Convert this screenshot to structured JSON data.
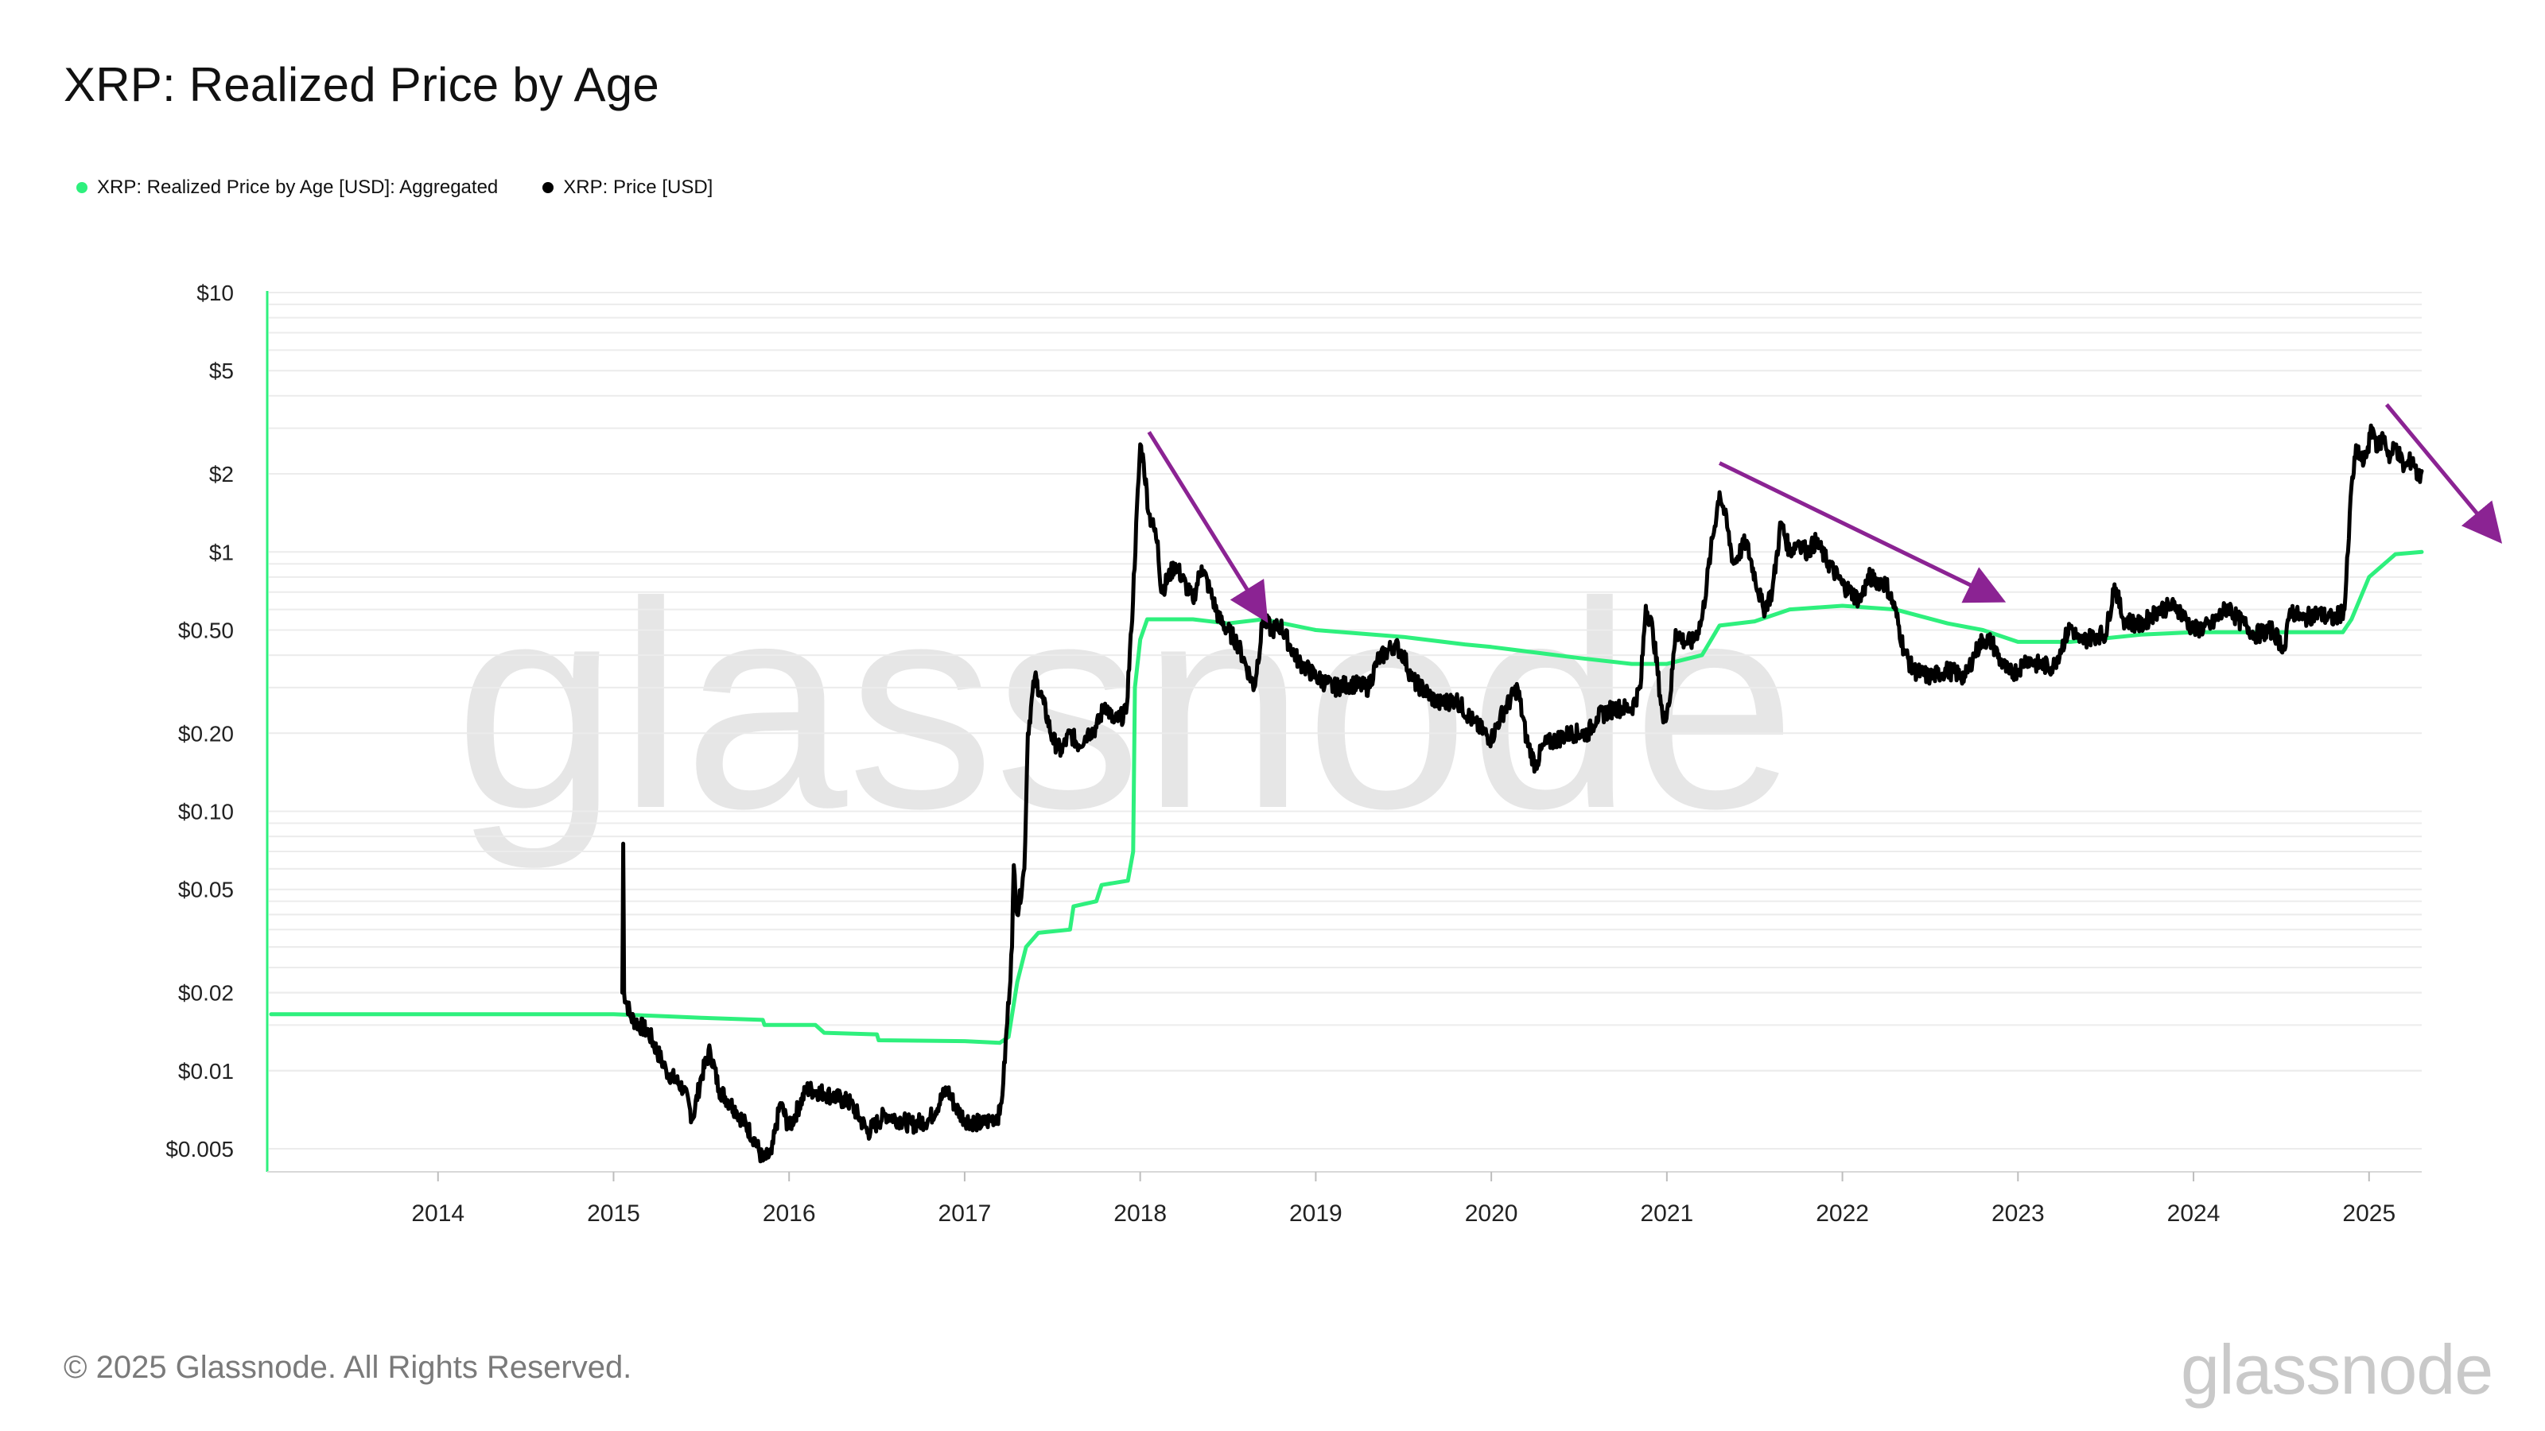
{
  "colors": {
    "realized": "#2ef07d",
    "price": "#000000",
    "arrow": "#8b2393",
    "grid": "#ececec",
    "axis_text": "#222222",
    "watermark": "#e6e6e6"
  },
  "legend": [
    {
      "label": "XRP: Realized Price by Age [USD]: Aggregated",
      "color": "#2ef07d"
    },
    {
      "label": "XRP: Price [USD]",
      "color": "#000000"
    }
  ],
  "footer": {
    "copyright": "© 2025 Glassnode. All Rights Reserved.",
    "brand": "glassnode"
  },
  "chart_data": {
    "type": "line",
    "title": "XRP: Realized Price by Age",
    "y_scale": "log",
    "ylim": [
      0.0045,
      10
    ],
    "xlim": [
      2013.0,
      2025.3
    ],
    "y_ticks": [
      {
        "value": 10,
        "label": "$10"
      },
      {
        "value": 5,
        "label": "$5"
      },
      {
        "value": 2,
        "label": "$2"
      },
      {
        "value": 1,
        "label": "$1"
      },
      {
        "value": 0.5,
        "label": "$0.50"
      },
      {
        "value": 0.2,
        "label": "$0.20"
      },
      {
        "value": 0.1,
        "label": "$0.10"
      },
      {
        "value": 0.05,
        "label": "$0.05"
      },
      {
        "value": 0.02,
        "label": "$0.02"
      },
      {
        "value": 0.01,
        "label": "$0.01"
      },
      {
        "value": 0.005,
        "label": "$0.005"
      }
    ],
    "x_ticks": [
      {
        "value": 2014,
        "label": "2014"
      },
      {
        "value": 2015,
        "label": "2015"
      },
      {
        "value": 2016,
        "label": "2016"
      },
      {
        "value": 2017,
        "label": "2017"
      },
      {
        "value": 2018,
        "label": "2018"
      },
      {
        "value": 2019,
        "label": "2019"
      },
      {
        "value": 2020,
        "label": "2020"
      },
      {
        "value": 2021,
        "label": "2021"
      },
      {
        "value": 2022,
        "label": "2022"
      },
      {
        "value": 2023,
        "label": "2023"
      },
      {
        "value": 2024,
        "label": "2024"
      },
      {
        "value": 2025,
        "label": "2025"
      }
    ],
    "watermark": "glassnode",
    "series": [
      {
        "name": "XRP: Realized Price by Age [USD]: Aggregated",
        "color": "#2ef07d",
        "points": [
          [
            2013.05,
            0.0165
          ],
          [
            2015.0,
            0.0165
          ],
          [
            2015.3,
            0.0162
          ],
          [
            2015.5,
            0.016
          ],
          [
            2015.85,
            0.0157
          ],
          [
            2015.86,
            0.015
          ],
          [
            2016.15,
            0.015
          ],
          [
            2016.2,
            0.014
          ],
          [
            2016.5,
            0.0138
          ],
          [
            2016.51,
            0.0131
          ],
          [
            2017.0,
            0.013
          ],
          [
            2017.2,
            0.0128
          ],
          [
            2017.25,
            0.0135
          ],
          [
            2017.3,
            0.022
          ],
          [
            2017.35,
            0.03
          ],
          [
            2017.42,
            0.034
          ],
          [
            2017.6,
            0.035
          ],
          [
            2017.62,
            0.043
          ],
          [
            2017.75,
            0.045
          ],
          [
            2017.78,
            0.052
          ],
          [
            2017.93,
            0.054
          ],
          [
            2017.96,
            0.07
          ],
          [
            2017.97,
            0.3
          ],
          [
            2018.0,
            0.46
          ],
          [
            2018.04,
            0.55
          ],
          [
            2018.3,
            0.55
          ],
          [
            2018.5,
            0.53
          ],
          [
            2018.7,
            0.55
          ],
          [
            2019.0,
            0.5
          ],
          [
            2019.5,
            0.47
          ],
          [
            2019.85,
            0.44
          ],
          [
            2020.0,
            0.43
          ],
          [
            2020.5,
            0.39
          ],
          [
            2020.8,
            0.37
          ],
          [
            2021.0,
            0.37
          ],
          [
            2021.2,
            0.4
          ],
          [
            2021.3,
            0.52
          ],
          [
            2021.5,
            0.54
          ],
          [
            2021.7,
            0.6
          ],
          [
            2022.0,
            0.62
          ],
          [
            2022.3,
            0.6
          ],
          [
            2022.6,
            0.53
          ],
          [
            2022.8,
            0.5
          ],
          [
            2023.0,
            0.45
          ],
          [
            2023.3,
            0.45
          ],
          [
            2023.7,
            0.48
          ],
          [
            2024.0,
            0.49
          ],
          [
            2024.5,
            0.49
          ],
          [
            2024.85,
            0.49
          ],
          [
            2024.9,
            0.55
          ],
          [
            2025.0,
            0.8
          ],
          [
            2025.15,
            0.98
          ],
          [
            2025.3,
            1.0
          ]
        ]
      },
      {
        "name": "XRP: Price [USD]",
        "color": "#000000",
        "points": [
          [
            2015.05,
            0.02
          ],
          [
            2015.055,
            0.075
          ],
          [
            2015.06,
            0.02
          ],
          [
            2015.1,
            0.016
          ],
          [
            2015.2,
            0.014
          ],
          [
            2015.3,
            0.01
          ],
          [
            2015.4,
            0.0085
          ],
          [
            2015.45,
            0.0065
          ],
          [
            2015.5,
            0.0095
          ],
          [
            2015.55,
            0.012
          ],
          [
            2015.6,
            0.0085
          ],
          [
            2015.7,
            0.007
          ],
          [
            2015.8,
            0.0055
          ],
          [
            2015.85,
            0.0045
          ],
          [
            2015.9,
            0.0048
          ],
          [
            2015.95,
            0.0075
          ],
          [
            2016.0,
            0.006
          ],
          [
            2016.1,
            0.0085
          ],
          [
            2016.2,
            0.0082
          ],
          [
            2016.35,
            0.0075
          ],
          [
            2016.45,
            0.0058
          ],
          [
            2016.55,
            0.0068
          ],
          [
            2016.7,
            0.0062
          ],
          [
            2016.8,
            0.0065
          ],
          [
            2016.9,
            0.0085
          ],
          [
            2016.95,
            0.0072
          ],
          [
            2017.0,
            0.0065
          ],
          [
            2017.1,
            0.0062
          ],
          [
            2017.15,
            0.0065
          ],
          [
            2017.2,
            0.0068
          ],
          [
            2017.22,
            0.009
          ],
          [
            2017.27,
            0.03
          ],
          [
            2017.28,
            0.062
          ],
          [
            2017.3,
            0.04
          ],
          [
            2017.34,
            0.06
          ],
          [
            2017.36,
            0.2
          ],
          [
            2017.4,
            0.33
          ],
          [
            2017.45,
            0.26
          ],
          [
            2017.5,
            0.19
          ],
          [
            2017.55,
            0.17
          ],
          [
            2017.6,
            0.2
          ],
          [
            2017.65,
            0.18
          ],
          [
            2017.7,
            0.2
          ],
          [
            2017.75,
            0.21
          ],
          [
            2017.8,
            0.26
          ],
          [
            2017.85,
            0.22
          ],
          [
            2017.92,
            0.24
          ],
          [
            2017.95,
            0.5
          ],
          [
            2018.0,
            2.6
          ],
          [
            2018.02,
            2.2
          ],
          [
            2018.05,
            1.4
          ],
          [
            2018.1,
            1.1
          ],
          [
            2018.12,
            0.7
          ],
          [
            2018.2,
            0.9
          ],
          [
            2018.3,
            0.65
          ],
          [
            2018.35,
            0.88
          ],
          [
            2018.4,
            0.7
          ],
          [
            2018.45,
            0.55
          ],
          [
            2018.55,
            0.45
          ],
          [
            2018.6,
            0.37
          ],
          [
            2018.65,
            0.3
          ],
          [
            2018.7,
            0.55
          ],
          [
            2018.75,
            0.5
          ],
          [
            2018.8,
            0.52
          ],
          [
            2018.85,
            0.44
          ],
          [
            2018.9,
            0.38
          ],
          [
            2019.0,
            0.33
          ],
          [
            2019.1,
            0.3
          ],
          [
            2019.2,
            0.31
          ],
          [
            2019.3,
            0.3
          ],
          [
            2019.35,
            0.38
          ],
          [
            2019.45,
            0.44
          ],
          [
            2019.5,
            0.4
          ],
          [
            2019.55,
            0.32
          ],
          [
            2019.6,
            0.3
          ],
          [
            2019.7,
            0.26
          ],
          [
            2019.8,
            0.27
          ],
          [
            2019.9,
            0.22
          ],
          [
            2020.0,
            0.19
          ],
          [
            2020.05,
            0.23
          ],
          [
            2020.15,
            0.3
          ],
          [
            2020.2,
            0.19
          ],
          [
            2020.25,
            0.15
          ],
          [
            2020.3,
            0.18
          ],
          [
            2020.45,
            0.2
          ],
          [
            2020.55,
            0.2
          ],
          [
            2020.6,
            0.23
          ],
          [
            2020.7,
            0.25
          ],
          [
            2020.8,
            0.25
          ],
          [
            2020.85,
            0.3
          ],
          [
            2020.88,
            0.62
          ],
          [
            2020.92,
            0.5
          ],
          [
            2020.98,
            0.22
          ],
          [
            2021.02,
            0.28
          ],
          [
            2021.05,
            0.5
          ],
          [
            2021.1,
            0.45
          ],
          [
            2021.15,
            0.45
          ],
          [
            2021.2,
            0.55
          ],
          [
            2021.25,
            1.0
          ],
          [
            2021.3,
            1.7
          ],
          [
            2021.33,
            1.4
          ],
          [
            2021.38,
            0.9
          ],
          [
            2021.45,
            1.1
          ],
          [
            2021.55,
            0.6
          ],
          [
            2021.6,
            0.7
          ],
          [
            2021.65,
            1.3
          ],
          [
            2021.7,
            1.0
          ],
          [
            2021.75,
            1.1
          ],
          [
            2021.8,
            1.0
          ],
          [
            2021.85,
            1.1
          ],
          [
            2021.9,
            0.95
          ],
          [
            2022.0,
            0.75
          ],
          [
            2022.1,
            0.65
          ],
          [
            2022.15,
            0.8
          ],
          [
            2022.25,
            0.75
          ],
          [
            2022.3,
            0.6
          ],
          [
            2022.35,
            0.42
          ],
          [
            2022.4,
            0.35
          ],
          [
            2022.5,
            0.33
          ],
          [
            2022.6,
            0.35
          ],
          [
            2022.7,
            0.33
          ],
          [
            2022.75,
            0.4
          ],
          [
            2022.8,
            0.46
          ],
          [
            2022.85,
            0.45
          ],
          [
            2022.9,
            0.38
          ],
          [
            2022.95,
            0.34
          ],
          [
            2023.0,
            0.35
          ],
          [
            2023.05,
            0.39
          ],
          [
            2023.1,
            0.37
          ],
          [
            2023.2,
            0.36
          ],
          [
            2023.3,
            0.52
          ],
          [
            2023.35,
            0.45
          ],
          [
            2023.45,
            0.48
          ],
          [
            2023.5,
            0.48
          ],
          [
            2023.55,
            0.75
          ],
          [
            2023.6,
            0.55
          ],
          [
            2023.7,
            0.52
          ],
          [
            2023.8,
            0.6
          ],
          [
            2023.9,
            0.62
          ],
          [
            2024.0,
            0.5
          ],
          [
            2024.1,
            0.52
          ],
          [
            2024.2,
            0.62
          ],
          [
            2024.25,
            0.55
          ],
          [
            2024.3,
            0.52
          ],
          [
            2024.35,
            0.48
          ],
          [
            2024.45,
            0.5
          ],
          [
            2024.52,
            0.42
          ],
          [
            2024.55,
            0.6
          ],
          [
            2024.62,
            0.55
          ],
          [
            2024.7,
            0.58
          ],
          [
            2024.8,
            0.55
          ],
          [
            2024.86,
            0.6
          ],
          [
            2024.88,
            1.0
          ],
          [
            2024.9,
            1.8
          ],
          [
            2024.93,
            2.5
          ],
          [
            2024.97,
            2.2
          ],
          [
            2025.02,
            3.0
          ],
          [
            2025.05,
            2.5
          ],
          [
            2025.08,
            2.8
          ],
          [
            2025.12,
            2.3
          ],
          [
            2025.15,
            2.6
          ],
          [
            2025.2,
            2.1
          ],
          [
            2025.25,
            2.3
          ],
          [
            2025.28,
            1.9
          ],
          [
            2025.3,
            2.05
          ]
        ]
      }
    ],
    "annotations": [
      {
        "type": "arrow",
        "from": [
          2018.05,
          2.9
        ],
        "to": [
          2018.68,
          0.6
        ]
      },
      {
        "type": "arrow",
        "from": [
          2021.3,
          2.2
        ],
        "to": [
          2022.85,
          0.68
        ]
      },
      {
        "type": "arrow",
        "from": [
          2025.1,
          3.7
        ],
        "to": [
          2025.7,
          1.2
        ]
      }
    ]
  }
}
